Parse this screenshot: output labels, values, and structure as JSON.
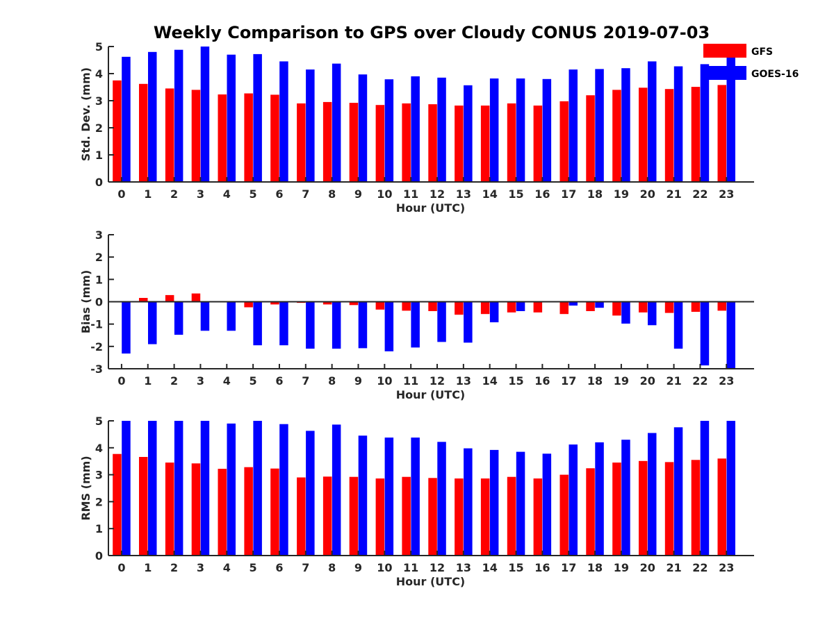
{
  "title": "Weekly Comparison to GPS over Cloudy CONUS 2019-07-03",
  "legend": [
    {
      "name": "GFS",
      "color": "#ff0000"
    },
    {
      "name": "GOES-16",
      "color": "#0000ff"
    }
  ],
  "chart_data": [
    {
      "type": "bar",
      "xlabel": "Hour (UTC)",
      "ylabel": "Std. Dev. (mm)",
      "ylim": [
        0,
        5
      ],
      "yticks": [
        0,
        1,
        2,
        3,
        4,
        5
      ],
      "categories": [
        "0",
        "1",
        "2",
        "3",
        "4",
        "5",
        "6",
        "7",
        "8",
        "9",
        "10",
        "11",
        "12",
        "13",
        "14",
        "15",
        "16",
        "17",
        "18",
        "19",
        "20",
        "21",
        "22",
        "23"
      ],
      "series": [
        {
          "name": "GFS",
          "color": "#ff0000",
          "values": [
            3.75,
            3.62,
            3.45,
            3.4,
            3.23,
            3.27,
            3.22,
            2.9,
            2.95,
            2.92,
            2.84,
            2.9,
            2.87,
            2.82,
            2.82,
            2.9,
            2.82,
            2.98,
            3.2,
            3.4,
            3.48,
            3.43,
            3.51,
            3.58
          ]
        },
        {
          "name": "GOES-16",
          "color": "#0000ff",
          "values": [
            4.62,
            4.8,
            4.88,
            5.0,
            4.7,
            4.72,
            4.45,
            4.15,
            4.37,
            3.97,
            3.79,
            3.9,
            3.85,
            3.57,
            3.82,
            3.82,
            3.8,
            4.15,
            4.17,
            4.2,
            4.45,
            4.27,
            4.35,
            5.0
          ]
        }
      ]
    },
    {
      "type": "bar",
      "xlabel": "Hour (UTC)",
      "ylabel": "Bias (mm)",
      "ylim": [
        -3,
        3
      ],
      "yticks": [
        -3,
        -2,
        -1,
        0,
        1,
        2,
        3
      ],
      "zero_line": true,
      "categories": [
        "0",
        "1",
        "2",
        "3",
        "4",
        "5",
        "6",
        "7",
        "8",
        "9",
        "10",
        "11",
        "12",
        "13",
        "14",
        "15",
        "16",
        "17",
        "18",
        "19",
        "20",
        "21",
        "22",
        "23"
      ],
      "series": [
        {
          "name": "GFS",
          "color": "#ff0000",
          "values": [
            0.03,
            0.17,
            0.3,
            0.37,
            -0.02,
            -0.25,
            -0.12,
            -0.05,
            -0.12,
            -0.15,
            -0.35,
            -0.4,
            -0.42,
            -0.58,
            -0.55,
            -0.48,
            -0.48,
            -0.55,
            -0.42,
            -0.62,
            -0.48,
            -0.5,
            -0.45,
            -0.4
          ]
        },
        {
          "name": "GOES-16",
          "color": "#0000ff",
          "values": [
            -2.32,
            -1.9,
            -1.48,
            -1.3,
            -1.3,
            -1.95,
            -1.95,
            -2.1,
            -2.1,
            -2.08,
            -2.22,
            -2.05,
            -1.8,
            -1.83,
            -0.92,
            -0.42,
            -0.03,
            -0.17,
            -0.27,
            -0.98,
            -1.05,
            -2.1,
            -2.85,
            -3.0
          ]
        }
      ]
    },
    {
      "type": "bar",
      "xlabel": "Hour (UTC)",
      "ylabel": "RMS (mm)",
      "ylim": [
        0,
        5
      ],
      "yticks": [
        0,
        1,
        2,
        3,
        4,
        5
      ],
      "categories": [
        "0",
        "1",
        "2",
        "3",
        "4",
        "5",
        "6",
        "7",
        "8",
        "9",
        "10",
        "11",
        "12",
        "13",
        "14",
        "15",
        "16",
        "17",
        "18",
        "19",
        "20",
        "21",
        "22",
        "23"
      ],
      "series": [
        {
          "name": "GFS",
          "color": "#ff0000",
          "values": [
            3.77,
            3.66,
            3.45,
            3.42,
            3.22,
            3.28,
            3.23,
            2.9,
            2.93,
            2.92,
            2.86,
            2.92,
            2.88,
            2.86,
            2.86,
            2.92,
            2.86,
            3.0,
            3.24,
            3.45,
            3.51,
            3.47,
            3.55,
            3.6
          ]
        },
        {
          "name": "GOES-16",
          "color": "#0000ff",
          "values": [
            5.0,
            5.0,
            5.0,
            5.0,
            4.9,
            5.0,
            4.88,
            4.63,
            4.86,
            4.45,
            4.38,
            4.38,
            4.22,
            3.98,
            3.92,
            3.85,
            3.78,
            4.12,
            4.2,
            4.3,
            4.55,
            4.76,
            5.0,
            5.0
          ]
        }
      ]
    }
  ]
}
